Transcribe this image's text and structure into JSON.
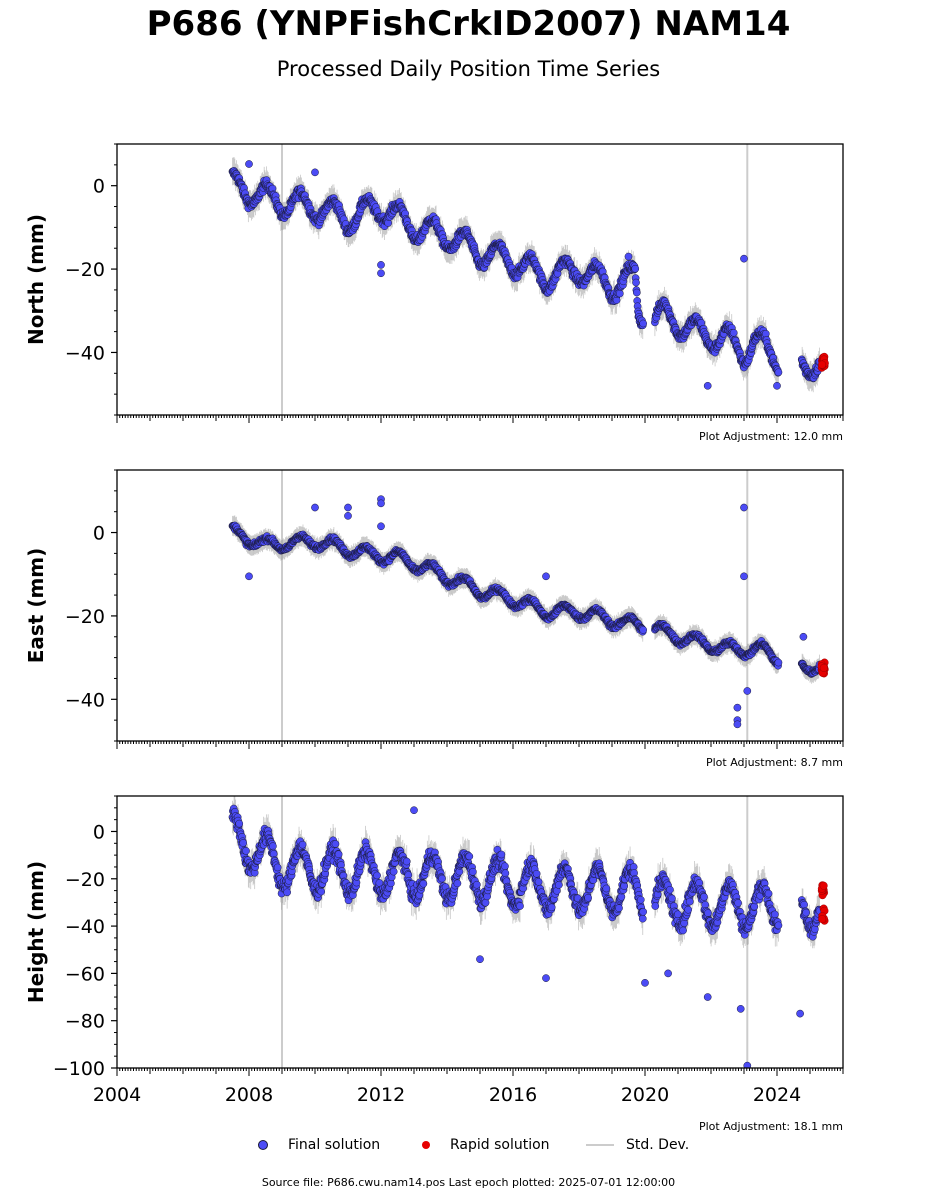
{
  "title": "P686 (YNPFishCrkID2007) NAM14",
  "subtitle": "Processed Daily Position Time Series",
  "colors": {
    "final": "#4b4bf5",
    "rapid": "#e60000",
    "std": "#cccccc",
    "edge": "#1a1a3a"
  },
  "legend": {
    "final": "Final solution",
    "rapid": "Rapid solution",
    "std": "Std. Dev."
  },
  "source": "Source file: P686.cwu.nam14.pos  Last epoch plotted: 2025-07-01 12:00:00",
  "chart_data": [
    {
      "type": "scatter",
      "ylabel": "North (mm)",
      "adjustment": "Plot Adjustment: 12.0 mm",
      "xlim": [
        2004,
        2026
      ],
      "ylim": [
        -55,
        10
      ],
      "yticks": [
        0,
        -20,
        -40
      ],
      "ytick_labels": [
        "0",
        "−20",
        "−40"
      ],
      "grid": false,
      "trend": [
        [
          2007.5,
          0
        ],
        [
          2009.0,
          -4
        ],
        [
          2010.0,
          -5
        ],
        [
          2011.0,
          -8
        ],
        [
          2012.0,
          -5
        ],
        [
          2013.0,
          -10
        ],
        [
          2014.0,
          -12
        ],
        [
          2015.0,
          -16
        ],
        [
          2016.0,
          -18
        ],
        [
          2017.0,
          -22
        ],
        [
          2018.0,
          -20
        ],
        [
          2019.0,
          -24
        ],
        [
          2019.7,
          -22
        ],
        [
          2019.8,
          -31
        ],
        [
          2020.3,
          -32
        ],
        [
          2020.6,
          -31
        ],
        [
          2021.5,
          -35
        ],
        [
          2022.5,
          -37
        ],
        [
          2023.0,
          -40
        ],
        [
          2023.3,
          -37
        ],
        [
          2024.1,
          -42
        ],
        [
          2024.8,
          -43
        ],
        [
          2025.3,
          -42
        ]
      ],
      "seasonal_amp": 3,
      "std_lines": [
        [
          2009.0,
          -55,
          10
        ],
        [
          2023.1,
          -55,
          10
        ]
      ],
      "outliers": [
        [
          2008.0,
          5.2
        ],
        [
          2010.0,
          3.2
        ],
        [
          2012.0,
          -19
        ],
        [
          2012.0,
          -21
        ],
        [
          2019.5,
          -17
        ],
        [
          2023.0,
          -17.5
        ],
        [
          2021.9,
          -48
        ],
        [
          2024.0,
          -48
        ]
      ],
      "rapid": {
        "x": [
          2025.35,
          2025.45
        ],
        "y": [
          -44,
          -41
        ]
      }
    },
    {
      "type": "scatter",
      "ylabel": "East (mm)",
      "adjustment": "Plot Adjustment: 8.7 mm",
      "xlim": [
        2004,
        2026
      ],
      "ylim": [
        -50,
        15
      ],
      "yticks": [
        0,
        -20,
        -40
      ],
      "ytick_labels": [
        "0",
        "−20",
        "−40"
      ],
      "grid": false,
      "trend": [
        [
          2007.5,
          0
        ],
        [
          2008.5,
          -3
        ],
        [
          2010.0,
          -2
        ],
        [
          2011.5,
          -5
        ],
        [
          2012.5,
          -6
        ],
        [
          2013.5,
          -9
        ],
        [
          2015.0,
          -14
        ],
        [
          2016.0,
          -16
        ],
        [
          2017.0,
          -19
        ],
        [
          2018.0,
          -19
        ],
        [
          2019.0,
          -21
        ],
        [
          2020.3,
          -23
        ],
        [
          2020.6,
          -24
        ],
        [
          2021.5,
          -26
        ],
        [
          2022.5,
          -28
        ],
        [
          2023.5,
          -28
        ],
        [
          2024.0,
          -30
        ],
        [
          2024.8,
          -32
        ],
        [
          2025.3,
          -32
        ]
      ],
      "seasonal_amp": 1.5,
      "std_lines": [
        [
          2009.0,
          -50,
          15
        ],
        [
          2023.1,
          -50,
          15
        ]
      ],
      "outliers": [
        [
          2008.0,
          -10.5
        ],
        [
          2010.0,
          6
        ],
        [
          2011.0,
          6
        ],
        [
          2011.0,
          4
        ],
        [
          2012.0,
          8
        ],
        [
          2012.0,
          7
        ],
        [
          2012.0,
          1.5
        ],
        [
          2017.0,
          -10.5
        ],
        [
          2023.0,
          6
        ],
        [
          2023.0,
          -10.5
        ],
        [
          2022.8,
          -42
        ],
        [
          2022.8,
          -45
        ],
        [
          2022.8,
          -46
        ],
        [
          2023.1,
          -38
        ],
        [
          2024.8,
          -25
        ]
      ],
      "rapid": {
        "x": [
          2025.35,
          2025.45
        ],
        "y": [
          -34,
          -31
        ]
      }
    },
    {
      "type": "scatter",
      "ylabel": "Height (mm)",
      "adjustment": "Plot Adjustment: 18.1 mm",
      "xlim": [
        2004,
        2026
      ],
      "ylim": [
        -100,
        15
      ],
      "yticks": [
        0,
        -20,
        -40,
        -60,
        -80,
        -100
      ],
      "ytick_labels": [
        "0",
        "−20",
        "−40",
        "−60",
        "−80",
        "−100"
      ],
      "xticks": [
        2004,
        2008,
        2012,
        2016,
        2020,
        2024
      ],
      "xtick_labels": [
        "2004",
        "2008",
        "2012",
        "2016",
        "2020",
        "2024"
      ],
      "grid": false,
      "trend": [
        [
          2007.5,
          -2
        ],
        [
          2009.0,
          -15
        ],
        [
          2012.0,
          -18
        ],
        [
          2015.0,
          -20
        ],
        [
          2017.0,
          -24
        ],
        [
          2019.5,
          -25
        ],
        [
          2020.5,
          -30
        ],
        [
          2022.0,
          -31
        ],
        [
          2024.0,
          -32
        ],
        [
          2025.3,
          -32
        ]
      ],
      "seasonal_amp": 9,
      "std_lines": [
        [
          2009.0,
          -100,
          15
        ],
        [
          2023.1,
          -100,
          15
        ]
      ],
      "outliers": [
        [
          2013.0,
          9
        ],
        [
          2015.0,
          -54
        ],
        [
          2017.0,
          -62
        ],
        [
          2020.0,
          -64
        ],
        [
          2021.9,
          -70
        ],
        [
          2022.9,
          -75
        ],
        [
          2023.1,
          -99
        ],
        [
          2024.7,
          -77
        ],
        [
          2020.7,
          -60
        ]
      ],
      "rapid": {
        "x": [
          2025.35,
          2025.45
        ],
        "y": [
          -38,
          -22
        ]
      }
    }
  ]
}
